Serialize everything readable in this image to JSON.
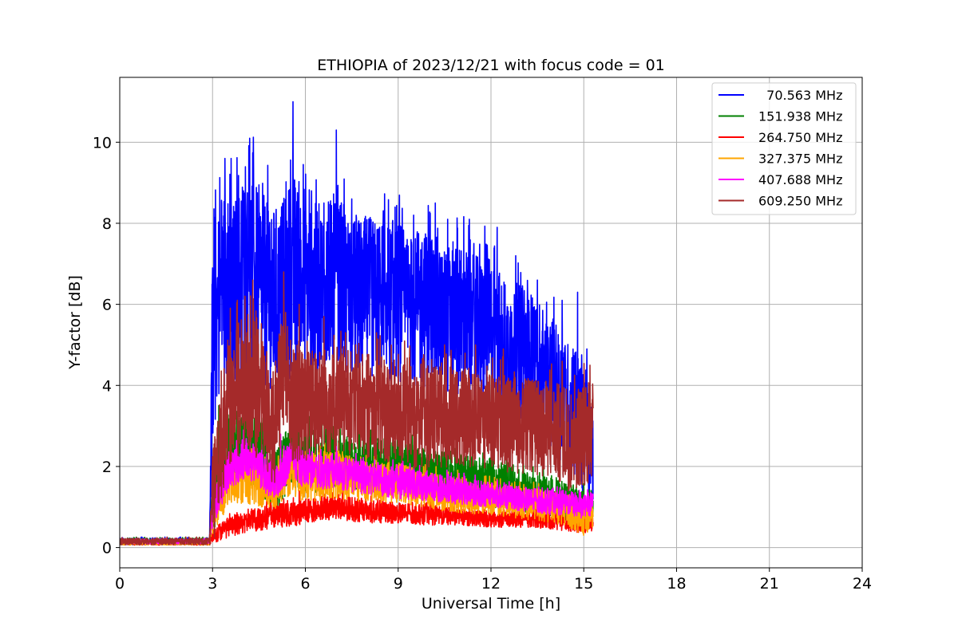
{
  "chart_data": {
    "type": "line",
    "title": "ETHIOPIA of 2023/12/21 with focus code = 01",
    "xlabel": "Universal Time [h]",
    "ylabel": "Y-factor [dB]",
    "xlim": [
      0,
      24
    ],
    "ylim": [
      -0.5,
      11.6
    ],
    "xticks": [
      0,
      3,
      6,
      9,
      12,
      15,
      18,
      21,
      24
    ],
    "yticks": [
      0,
      2,
      4,
      6,
      8,
      10
    ],
    "xtick_labels": [
      "0",
      "3",
      "6",
      "9",
      "12",
      "15",
      "18",
      "21",
      "24"
    ],
    "ytick_labels": [
      "0",
      "2",
      "4",
      "6",
      "8",
      "10"
    ],
    "grid": true,
    "legend_position": "top-right",
    "series": [
      {
        "name": "  70.563 MHz",
        "color": "#0000ff",
        "x": [
          0,
          2.9,
          3.0,
          3.3,
          3.6,
          4.2,
          4.8,
          5.2,
          5.6,
          6.0,
          6.6,
          7.0,
          7.5,
          8.0,
          8.5,
          9.0,
          9.5,
          10.0,
          10.5,
          11.0,
          11.5,
          12.0,
          12.5,
          13.0,
          13.5,
          14.0,
          14.5,
          14.8,
          15.0,
          15.3
        ],
        "y": [
          0.15,
          0.15,
          5.0,
          6.5,
          6.0,
          6.8,
          6.2,
          6.0,
          6.8,
          6.4,
          6.3,
          6.6,
          6.1,
          6.2,
          6.0,
          6.1,
          5.8,
          5.9,
          5.6,
          5.7,
          5.4,
          5.3,
          4.9,
          4.8,
          4.5,
          4.0,
          3.5,
          3.2,
          3.0,
          2.5
        ],
        "spread": [
          0.08,
          0.08,
          2.5,
          2.5,
          2.5,
          2.6,
          2.3,
          2.4,
          2.5,
          2.2,
          2.2,
          2.2,
          2.0,
          2.0,
          2.0,
          2.0,
          1.9,
          2.0,
          1.9,
          1.9,
          1.8,
          1.9,
          1.7,
          1.7,
          1.7,
          1.6,
          1.6,
          1.6,
          1.7,
          1.5
        ],
        "peaks": [
          [
            3.0,
            6.9
          ],
          [
            3.1,
            7.9
          ],
          [
            3.4,
            9.6
          ],
          [
            3.6,
            9.6
          ],
          [
            4.0,
            8.8
          ],
          [
            4.2,
            10.1
          ],
          [
            4.8,
            8.3
          ],
          [
            5.6,
            11.0
          ],
          [
            6.2,
            8.8
          ],
          [
            6.6,
            8.5
          ],
          [
            7.0,
            10.3
          ],
          [
            7.5,
            8.6
          ],
          [
            8.4,
            7.9
          ],
          [
            8.9,
            8.4
          ],
          [
            9.5,
            8.2
          ],
          [
            10.2,
            8.5
          ],
          [
            10.6,
            8.1
          ],
          [
            11.3,
            8.1
          ],
          [
            12.2,
            7.9
          ],
          [
            12.8,
            7.2
          ],
          [
            13.5,
            6.6
          ],
          [
            14.3,
            6.1
          ],
          [
            14.8,
            6.3
          ],
          [
            15.1,
            4.9
          ]
        ]
      },
      {
        "name": "151.938 MHz",
        "color": "#008000",
        "x": [
          0,
          2.9,
          3.0,
          3.5,
          4.5,
          5.0,
          5.5,
          6.0,
          7.0,
          8.0,
          9.0,
          10.0,
          11.0,
          12.0,
          13.0,
          14.0,
          14.5,
          15.0,
          15.3
        ],
        "y": [
          0.15,
          0.15,
          1.0,
          2.4,
          2.4,
          1.5,
          2.3,
          2.1,
          2.3,
          2.0,
          2.0,
          1.8,
          1.7,
          1.6,
          1.4,
          1.2,
          1.1,
          1.0,
          1.0
        ],
        "spread": [
          0.08,
          0.08,
          0.7,
          0.9,
          0.9,
          0.8,
          0.8,
          0.8,
          0.8,
          0.7,
          0.7,
          0.6,
          0.6,
          0.6,
          0.5,
          0.5,
          0.5,
          0.5,
          0.4
        ],
        "peaks": [
          [
            3.2,
            3.5
          ],
          [
            5.7,
            3.6
          ],
          [
            6.8,
            3.2
          ],
          [
            12.5,
            2.3
          ]
        ]
      },
      {
        "name": "264.750 MHz",
        "color": "#ff0000",
        "x": [
          0,
          2.9,
          3.0,
          3.5,
          4.0,
          4.5,
          5.0,
          5.5,
          6.0,
          7.0,
          8.0,
          9.0,
          10.0,
          11.0,
          12.0,
          13.0,
          14.0,
          14.5,
          15.0,
          15.3
        ],
        "y": [
          0.12,
          0.12,
          0.3,
          0.5,
          0.6,
          0.7,
          0.8,
          0.8,
          0.9,
          1.0,
          0.9,
          0.85,
          0.8,
          0.75,
          0.7,
          0.7,
          0.65,
          0.6,
          0.55,
          0.6
        ],
        "spread": [
          0.06,
          0.06,
          0.2,
          0.25,
          0.25,
          0.3,
          0.3,
          0.3,
          0.3,
          0.3,
          0.3,
          0.25,
          0.25,
          0.2,
          0.2,
          0.2,
          0.2,
          0.2,
          0.2,
          0.2
        ],
        "peaks": [
          [
            7.2,
            1.5
          ],
          [
            5.8,
            1.4
          ]
        ]
      },
      {
        "name": "327.375 MHz",
        "color": "#ffa500",
        "x": [
          0,
          2.9,
          3.0,
          3.5,
          4.0,
          4.5,
          5.0,
          5.5,
          6.0,
          7.0,
          8.0,
          9.0,
          10.0,
          11.0,
          12.0,
          13.0,
          14.0,
          14.5,
          15.0,
          15.3
        ],
        "y": [
          0.12,
          0.12,
          0.8,
          1.6,
          1.7,
          1.6,
          1.4,
          1.9,
          1.7,
          1.8,
          1.6,
          1.6,
          1.4,
          1.3,
          1.2,
          1.1,
          1.0,
          0.9,
          0.7,
          0.8
        ],
        "spread": [
          0.06,
          0.06,
          0.5,
          0.6,
          0.6,
          0.6,
          0.5,
          0.6,
          0.6,
          0.6,
          0.5,
          0.5,
          0.45,
          0.45,
          0.4,
          0.4,
          0.4,
          0.4,
          0.4,
          0.4
        ],
        "peaks": [
          [
            3.6,
            2.6
          ],
          [
            6.8,
            3.1
          ],
          [
            8.7,
            2.6
          ]
        ]
      },
      {
        "name": "407.688 MHz",
        "color": "#ff00ff",
        "x": [
          0,
          2.9,
          3.0,
          3.5,
          4.0,
          4.5,
          5.0,
          5.5,
          6.0,
          7.0,
          8.0,
          9.0,
          10.0,
          11.0,
          12.0,
          13.0,
          14.0,
          14.5,
          15.0,
          15.3
        ],
        "y": [
          0.15,
          0.15,
          0.9,
          1.9,
          2.2,
          2.0,
          1.5,
          2.2,
          1.9,
          1.9,
          1.7,
          1.6,
          1.5,
          1.4,
          1.3,
          1.2,
          1.1,
          1.1,
          1.0,
          1.1
        ],
        "spread": [
          0.06,
          0.06,
          0.4,
          0.5,
          0.5,
          0.5,
          0.4,
          0.5,
          0.45,
          0.45,
          0.4,
          0.4,
          0.35,
          0.35,
          0.3,
          0.3,
          0.3,
          0.3,
          0.3,
          0.3
        ],
        "peaks": [
          [
            4.0,
            2.9
          ],
          [
            5.2,
            2.8
          ],
          [
            7.0,
            2.6
          ]
        ]
      },
      {
        "name": "609.250 MHz",
        "color": "#a52a2a",
        "x": [
          0,
          2.9,
          3.0,
          3.5,
          4.0,
          4.5,
          5.0,
          5.3,
          5.6,
          6.0,
          7.0,
          8.0,
          9.0,
          10.0,
          11.0,
          12.0,
          13.0,
          14.0,
          14.5,
          15.0,
          15.3
        ],
        "y": [
          0.15,
          0.15,
          1.2,
          3.6,
          4.0,
          3.8,
          3.0,
          4.5,
          3.5,
          3.5,
          3.6,
          3.5,
          3.3,
          3.2,
          3.2,
          3.1,
          3.0,
          2.9,
          2.7,
          2.8,
          2.9
        ],
        "spread": [
          0.08,
          0.08,
          1.2,
          1.6,
          1.7,
          1.6,
          1.5,
          1.6,
          1.4,
          1.4,
          1.3,
          1.3,
          1.3,
          1.3,
          1.2,
          1.2,
          1.2,
          1.2,
          1.3,
          1.3,
          1.2
        ],
        "peaks": [
          [
            3.8,
            6.1
          ],
          [
            4.3,
            6.6
          ],
          [
            5.3,
            6.8
          ],
          [
            5.8,
            6.0
          ],
          [
            6.6,
            5.7
          ],
          [
            7.3,
            5.3
          ],
          [
            8.3,
            5.3
          ],
          [
            10.5,
            5.0
          ],
          [
            11.5,
            5.0
          ],
          [
            12.4,
            4.9
          ],
          [
            14.3,
            4.6
          ],
          [
            15.2,
            4.5
          ]
        ]
      }
    ]
  }
}
